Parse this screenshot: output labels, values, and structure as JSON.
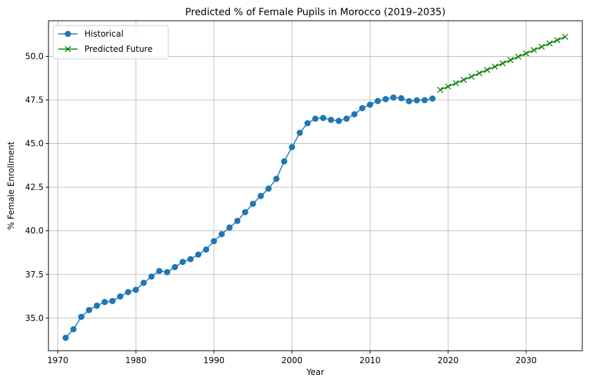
{
  "chart_data": {
    "type": "line",
    "title": "Predicted % of Female Pupils in Morocco (2019–2035)",
    "xlabel": "Year",
    "ylabel": "% Female Enrollment",
    "xlim": [
      1968.8,
      2037.2
    ],
    "ylim": [
      33.13,
      52.04
    ],
    "xticks": [
      1970,
      1980,
      1990,
      2000,
      2010,
      2020,
      2030
    ],
    "yticks": [
      35.0,
      37.5,
      40.0,
      42.5,
      45.0,
      47.5,
      50.0
    ],
    "ytick_labels": [
      "35.0",
      "37.5",
      "40.0",
      "42.5",
      "45.0",
      "47.5",
      "50.0"
    ],
    "grid": true,
    "legend_position": "top-left",
    "series": [
      {
        "name": "Historical",
        "color": "#1f77b4",
        "marker": "circle",
        "x": [
          1971,
          1972,
          1973,
          1974,
          1975,
          1976,
          1977,
          1978,
          1979,
          1980,
          1981,
          1982,
          1983,
          1984,
          1985,
          1986,
          1987,
          1988,
          1989,
          1990,
          1991,
          1992,
          1993,
          1994,
          1995,
          1996,
          1997,
          1998,
          1999,
          2000,
          2001,
          2002,
          2003,
          2004,
          2005,
          2006,
          2007,
          2008,
          2009,
          2010,
          2011,
          2012,
          2013,
          2014,
          2015,
          2016,
          2017,
          2018
        ],
        "y": [
          33.87,
          34.36,
          35.07,
          35.46,
          35.71,
          35.92,
          35.98,
          36.24,
          36.49,
          36.62,
          37.02,
          37.38,
          37.7,
          37.63,
          37.92,
          38.22,
          38.38,
          38.64,
          38.93,
          39.41,
          39.81,
          40.19,
          40.57,
          41.07,
          41.55,
          42.0,
          42.42,
          42.98,
          43.98,
          44.8,
          45.62,
          46.17,
          46.43,
          46.47,
          46.36,
          46.3,
          46.43,
          46.68,
          47.03,
          47.23,
          47.44,
          47.55,
          47.64,
          47.6,
          47.43,
          47.48,
          47.49,
          47.58
        ]
      },
      {
        "name": "Predicted Future",
        "color": "#008000",
        "marker": "x",
        "x": [
          2019,
          2020,
          2021,
          2022,
          2023,
          2024,
          2025,
          2026,
          2027,
          2028,
          2029,
          2030,
          2031,
          2032,
          2033,
          2034,
          2035
        ],
        "y": [
          48.08,
          48.27,
          48.46,
          48.65,
          48.84,
          49.03,
          49.22,
          49.41,
          49.6,
          49.79,
          49.98,
          50.17,
          50.36,
          50.55,
          50.74,
          50.93,
          51.12
        ]
      }
    ]
  }
}
